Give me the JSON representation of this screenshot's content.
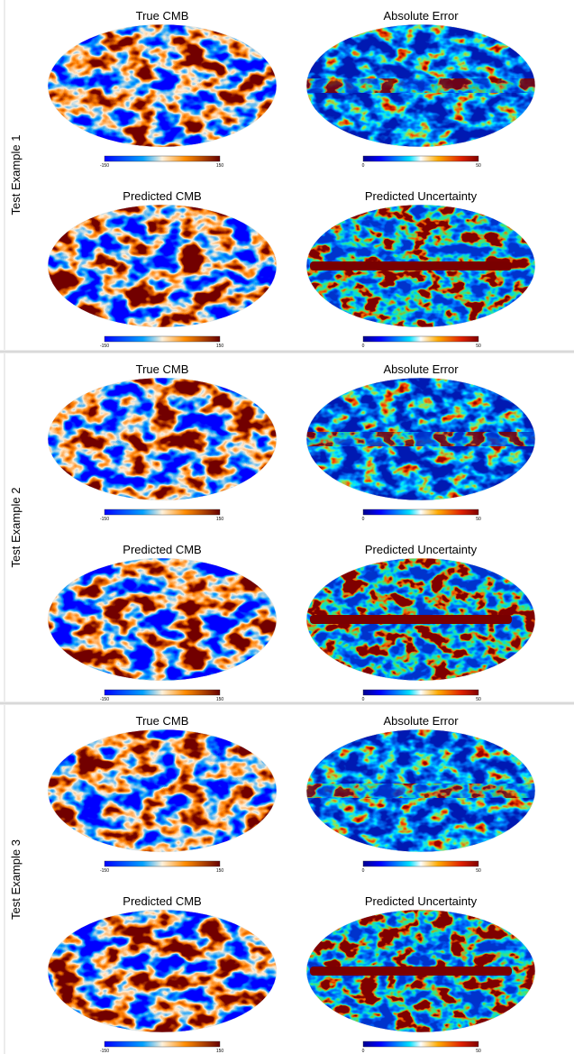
{
  "examples": [
    {
      "label": "Test Example 1",
      "panels": [
        {
          "title": "True CMB",
          "colorbar": {
            "min": -150,
            "max": 150
          }
        },
        {
          "title": "Absolute Error",
          "colorbar": {
            "min": 0,
            "max": 50
          }
        },
        {
          "title": "Predicted CMB",
          "colorbar": {
            "min": -150,
            "max": 150
          }
        },
        {
          "title": "Predicted Uncertainty",
          "colorbar": {
            "min": 0,
            "max": 50
          }
        }
      ]
    },
    {
      "label": "Test Example 2",
      "panels": [
        {
          "title": "True CMB",
          "colorbar": {
            "min": -150,
            "max": 150
          }
        },
        {
          "title": "Absolute Error",
          "colorbar": {
            "min": 0,
            "max": 50
          }
        },
        {
          "title": "Predicted CMB",
          "colorbar": {
            "min": -150,
            "max": 150
          }
        },
        {
          "title": "Predicted Uncertainty",
          "colorbar": {
            "min": 0,
            "max": 50
          }
        }
      ]
    },
    {
      "label": "Test Example 3",
      "panels": [
        {
          "title": "True CMB",
          "colorbar": {
            "min": -150,
            "max": 150
          }
        },
        {
          "title": "Absolute Error",
          "colorbar": {
            "min": 0,
            "max": 50
          }
        },
        {
          "title": "Predicted CMB",
          "colorbar": {
            "min": -150,
            "max": 150
          }
        },
        {
          "title": "Predicted Uncertainty",
          "colorbar": {
            "min": 0,
            "max": 50
          }
        }
      ]
    }
  ]
}
